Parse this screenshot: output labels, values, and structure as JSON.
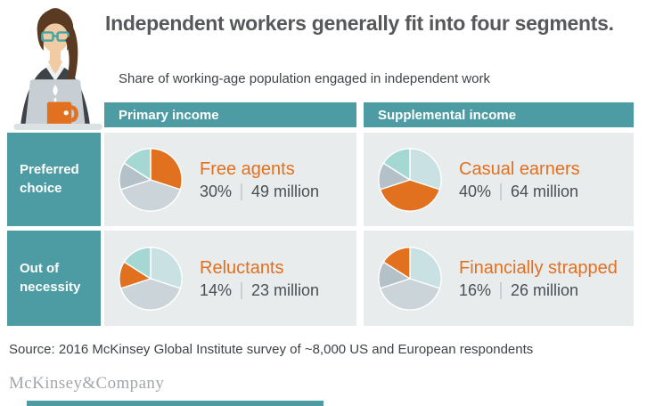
{
  "title": "Independent workers generally fit into four segments.",
  "subtitle": "Share of working-age population engaged in independent work",
  "columns": [
    {
      "label": "Primary income"
    },
    {
      "label": "Supplemental income"
    }
  ],
  "rows": [
    {
      "label": "Preferred choice"
    },
    {
      "label": "Out of necessity"
    }
  ],
  "chart_data": {
    "type": "pie",
    "title": "Share of working-age population engaged in independent work",
    "categories": [
      "Free agents",
      "Casual earners",
      "Reluctants",
      "Financially strapped"
    ],
    "values_pct": [
      30,
      40,
      14,
      16
    ],
    "counts_millions": [
      49,
      64,
      23,
      26
    ],
    "start_angle_deg": -90,
    "direction": "clockwise",
    "muted_colors": [
      "#C9E1E2",
      "#CBD5D9",
      "#B4C1C8",
      "#A5D8D2"
    ],
    "highlight_color": "#E1701F",
    "legend_position": "none",
    "pies": [
      {
        "highlight": "Free agents",
        "highlight_index": 0,
        "pct": "30%",
        "count": "49 million",
        "row": "Preferred choice",
        "column": "Primary income"
      },
      {
        "highlight": "Casual earners",
        "highlight_index": 1,
        "pct": "40%",
        "count": "64 million",
        "row": "Preferred choice",
        "column": "Supplemental income"
      },
      {
        "highlight": "Reluctants",
        "highlight_index": 2,
        "pct": "14%",
        "count": "23 million",
        "row": "Out of necessity",
        "column": "Primary income"
      },
      {
        "highlight": "Financially strapped",
        "highlight_index": 3,
        "pct": "16%",
        "count": "26 million",
        "row": "Out of necessity",
        "column": "Supplemental income"
      }
    ]
  },
  "source": "Source: 2016 McKinsey Global Institute survey of ~8,000 US and European respondents",
  "logo": "McKinsey&Company",
  "colors": {
    "teal": "#4D9CA4",
    "orange": "#E1701F",
    "panel_gray": "#E9ECED",
    "title_gray": "#57585B",
    "text_dark": "#3E4347",
    "stats_gray": "#4A4F54",
    "divider_gray": "#C9CFD3",
    "logo_gray": "#A3A7AA"
  }
}
